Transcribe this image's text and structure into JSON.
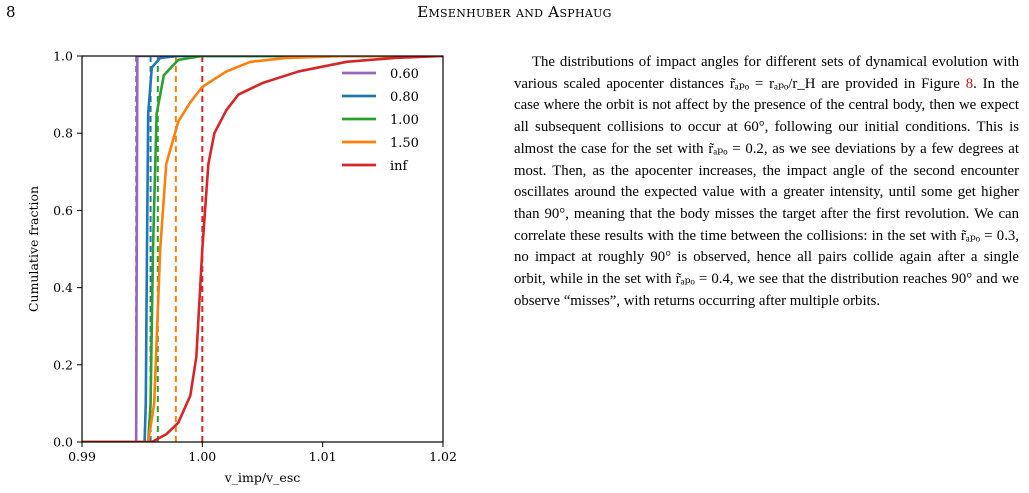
{
  "header": {
    "page_number": "8",
    "running_title": "Emsenhuber and Asphaug"
  },
  "figure": {
    "x_axis_label": "v_imp/v_esc",
    "y_axis_label": "Cumulative fraction",
    "x_ticks": [
      "0.99",
      "1.00",
      "1.01",
      "1.02"
    ],
    "y_ticks": [
      "0.0",
      "0.2",
      "0.4",
      "0.6",
      "0.8",
      "1.0"
    ]
  },
  "chart_data": {
    "type": "line",
    "xlabel": "v_imp/v_esc",
    "ylabel": "Cumulative fraction",
    "xlim": [
      0.99,
      1.02
    ],
    "ylim": [
      0.0,
      1.0
    ],
    "grid": false,
    "legend_position": "top-right",
    "series": [
      {
        "name": "0.60",
        "color": "#9467bd",
        "vline": 0.9945,
        "points": [
          [
            0.99,
            0.0
          ],
          [
            0.9945,
            0.0
          ],
          [
            0.99455,
            0.5
          ],
          [
            0.9946,
            1.0
          ],
          [
            1.02,
            1.0
          ]
        ]
      },
      {
        "name": "0.80",
        "color": "#1f77b4",
        "vline": 0.9957,
        "points": [
          [
            0.99,
            0.0
          ],
          [
            0.9952,
            0.0
          ],
          [
            0.9953,
            0.1
          ],
          [
            0.9954,
            0.5
          ],
          [
            0.9955,
            0.85
          ],
          [
            0.9958,
            0.97
          ],
          [
            0.9965,
            0.995
          ],
          [
            0.998,
            1.0
          ],
          [
            1.02,
            1.0
          ]
        ]
      },
      {
        "name": "1.00",
        "color": "#2ca02c",
        "vline": 0.9963,
        "points": [
          [
            0.99,
            0.0
          ],
          [
            0.9955,
            0.0
          ],
          [
            0.9957,
            0.1
          ],
          [
            0.9959,
            0.5
          ],
          [
            0.9962,
            0.85
          ],
          [
            0.9968,
            0.95
          ],
          [
            0.998,
            0.99
          ],
          [
            1.0,
            1.0
          ],
          [
            1.02,
            1.0
          ]
        ]
      },
      {
        "name": "1.50",
        "color": "#ff7f0e",
        "vline": 0.9978,
        "points": [
          [
            0.99,
            0.0
          ],
          [
            0.9955,
            0.0
          ],
          [
            0.996,
            0.1
          ],
          [
            0.9965,
            0.5
          ],
          [
            0.997,
            0.72
          ],
          [
            0.998,
            0.83
          ],
          [
            0.999,
            0.88
          ],
          [
            1.0,
            0.92
          ],
          [
            1.002,
            0.96
          ],
          [
            1.004,
            0.985
          ],
          [
            1.007,
            0.995
          ],
          [
            1.012,
            1.0
          ],
          [
            1.02,
            1.0
          ]
        ]
      },
      {
        "name": "inf",
        "color": "#d62728",
        "vline": 1.0,
        "points": [
          [
            0.99,
            0.0
          ],
          [
            0.9958,
            0.0
          ],
          [
            0.997,
            0.02
          ],
          [
            0.998,
            0.05
          ],
          [
            0.999,
            0.12
          ],
          [
            0.9995,
            0.22
          ],
          [
            1.0,
            0.5
          ],
          [
            1.0005,
            0.72
          ],
          [
            1.001,
            0.8
          ],
          [
            1.002,
            0.86
          ],
          [
            1.003,
            0.9
          ],
          [
            1.005,
            0.93
          ],
          [
            1.008,
            0.96
          ],
          [
            1.012,
            0.985
          ],
          [
            1.016,
            0.995
          ],
          [
            1.02,
            1.0
          ]
        ]
      }
    ]
  },
  "body": {
    "paragraph_1": "The distributions of impact angles for different sets of dynamical evolution with various scaled apocenter distances r̃ₐₚₒ = rₐₚₒ/r_H are provided in Figure ",
    "fig_ref": "8",
    "paragraph_1_end": ". In the case where the orbit is not affect by the presence of the central body, then we expect all subsequent collisions to occur at 60°, following our initial conditions. This is almost the case for the set with r̃ₐₚₒ = 0.2, as we see deviations by a few degrees at most. Then, as the apocenter increases, the impact angle of the second encounter oscillates around the expected value with a greater intensity, until some get higher than 90°, meaning that the body misses the target after the first revolution. We can correlate these results with the time between the collisions: in the set with r̃ₐₚₒ = 0.3, no impact at roughly 90° is observed, hence all pairs collide again after a single orbit, while in the set with r̃ₐₚₒ = 0.4, we see that the distribution reaches 90° and we observe “misses”, with returns occurring after multiple orbits."
  }
}
